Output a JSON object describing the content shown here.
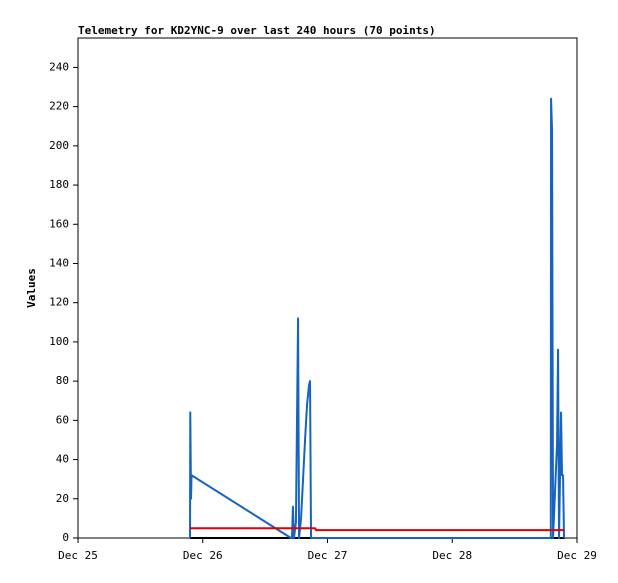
{
  "chart_data": {
    "type": "line",
    "title": "Telemetry for KD2YNC-9 over last 240 hours (70 points)",
    "y_label": "Values",
    "xlim": [
      25,
      29
    ],
    "xticks": [
      {
        "value": 25,
        "label": "Dec 25"
      },
      {
        "value": 26,
        "label": "Dec 26"
      },
      {
        "value": 27,
        "label": "Dec 27"
      },
      {
        "value": 28,
        "label": "Dec 28"
      },
      {
        "value": 29,
        "label": "Dec 29"
      }
    ],
    "ylim": [
      0,
      255
    ],
    "yticks": [
      0,
      20,
      40,
      60,
      80,
      100,
      120,
      140,
      160,
      180,
      200,
      220,
      240
    ],
    "grid": false,
    "series": [
      {
        "color": "#000000",
        "x": [
          25.898,
          28.9
        ],
        "values": [
          0,
          0
        ]
      },
      {
        "color": "#1565c0",
        "x": [
          25.898,
          25.9,
          25.906,
          25.91,
          26.707,
          26.715,
          26.723,
          26.731,
          26.747,
          26.764,
          26.772,
          26.788,
          26.804,
          26.82,
          26.836,
          26.852,
          26.86,
          26.868,
          28.79,
          28.792,
          28.8,
          28.808,
          28.84,
          28.848,
          28.856,
          28.872,
          28.88,
          28.888,
          28.896
        ],
        "values": [
          0,
          64,
          20,
          32,
          0,
          0,
          16,
          0,
          8,
          112,
          0,
          10,
          30,
          50,
          68,
          78,
          80,
          0,
          0,
          224,
          208,
          0,
          48,
          96,
          0,
          64,
          32,
          32,
          0
        ]
      },
      {
        "color": "#e00000",
        "x": [
          25.898,
          26.9,
          26.91,
          28.9
        ],
        "values": [
          5,
          5,
          4,
          4
        ]
      }
    ]
  }
}
